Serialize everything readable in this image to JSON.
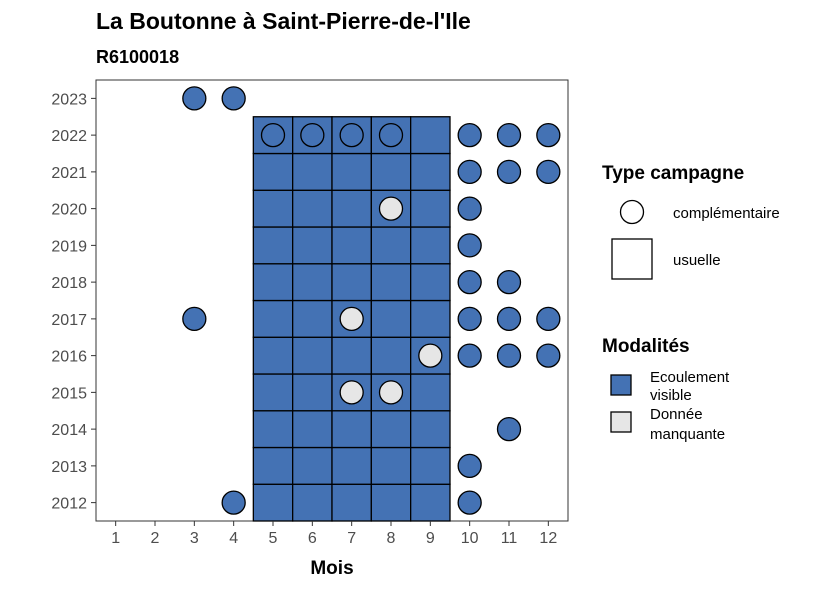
{
  "chart_data": {
    "type": "heatmap",
    "title": "La Boutonne à Saint-Pierre-de-l'Ile",
    "subtitle": "R6100018",
    "xlabel": "Mois",
    "ylabel": "",
    "x_ticks": [
      "1",
      "2",
      "3",
      "4",
      "5",
      "6",
      "7",
      "8",
      "9",
      "10",
      "11",
      "12"
    ],
    "y_ticks": [
      "2012",
      "2013",
      "2014",
      "2015",
      "2016",
      "2017",
      "2018",
      "2019",
      "2020",
      "2021",
      "2022",
      "2023"
    ],
    "xlim": [
      0.5,
      12.5
    ],
    "ylim": [
      2011.5,
      2023.5
    ],
    "colors": {
      "ecoulement_visible": "#4472b4",
      "donnee_manquante": "#e6e6e6",
      "outline": "#000000"
    },
    "legend_type": {
      "title": "Type campagne",
      "items": [
        {
          "label": "complémentaire",
          "shape": "circle"
        },
        {
          "label": "usuelle",
          "shape": "square"
        }
      ]
    },
    "legend_modalites": {
      "title": "Modalités",
      "items": [
        {
          "label_lines": [
            "Ecoulement",
            "visible"
          ],
          "color": "#4472b4"
        },
        {
          "label_lines": [
            "Donnée",
            "manquante"
          ],
          "color": "#e6e6e6"
        }
      ]
    },
    "usuelle": {
      "months": [
        5,
        6,
        7,
        8,
        9
      ],
      "years": [
        2012,
        2022
      ],
      "missing": [
        {
          "year": 2020,
          "month": 8
        },
        {
          "year": 2017,
          "month": 7
        },
        {
          "year": 2016,
          "month": 9
        },
        {
          "year": 2015,
          "month": 7
        },
        {
          "year": 2015,
          "month": 8
        }
      ]
    },
    "complementaire": [
      {
        "year": 2023,
        "month": 3,
        "modalite": "ecoulement_visible"
      },
      {
        "year": 2023,
        "month": 4,
        "modalite": "ecoulement_visible"
      },
      {
        "year": 2022,
        "month": 5,
        "modalite": "ecoulement_visible"
      },
      {
        "year": 2022,
        "month": 6,
        "modalite": "ecoulement_visible"
      },
      {
        "year": 2022,
        "month": 7,
        "modalite": "ecoulement_visible"
      },
      {
        "year": 2022,
        "month": 8,
        "modalite": "ecoulement_visible"
      },
      {
        "year": 2022,
        "month": 10,
        "modalite": "ecoulement_visible"
      },
      {
        "year": 2022,
        "month": 11,
        "modalite": "ecoulement_visible"
      },
      {
        "year": 2022,
        "month": 12,
        "modalite": "ecoulement_visible"
      },
      {
        "year": 2021,
        "month": 10,
        "modalite": "ecoulement_visible"
      },
      {
        "year": 2021,
        "month": 11,
        "modalite": "ecoulement_visible"
      },
      {
        "year": 2021,
        "month": 12,
        "modalite": "ecoulement_visible"
      },
      {
        "year": 2020,
        "month": 10,
        "modalite": "ecoulement_visible"
      },
      {
        "year": 2019,
        "month": 10,
        "modalite": "ecoulement_visible"
      },
      {
        "year": 2018,
        "month": 10,
        "modalite": "ecoulement_visible"
      },
      {
        "year": 2018,
        "month": 11,
        "modalite": "ecoulement_visible"
      },
      {
        "year": 2017,
        "month": 3,
        "modalite": "ecoulement_visible"
      },
      {
        "year": 2017,
        "month": 10,
        "modalite": "ecoulement_visible"
      },
      {
        "year": 2017,
        "month": 11,
        "modalite": "ecoulement_visible"
      },
      {
        "year": 2017,
        "month": 12,
        "modalite": "ecoulement_visible"
      },
      {
        "year": 2016,
        "month": 10,
        "modalite": "ecoulement_visible"
      },
      {
        "year": 2016,
        "month": 11,
        "modalite": "ecoulement_visible"
      },
      {
        "year": 2016,
        "month": 12,
        "modalite": "ecoulement_visible"
      },
      {
        "year": 2014,
        "month": 11,
        "modalite": "ecoulement_visible"
      },
      {
        "year": 2013,
        "month": 10,
        "modalite": "ecoulement_visible"
      },
      {
        "year": 2012,
        "month": 4,
        "modalite": "ecoulement_visible"
      },
      {
        "year": 2012,
        "month": 10,
        "modalite": "ecoulement_visible"
      }
    ]
  }
}
